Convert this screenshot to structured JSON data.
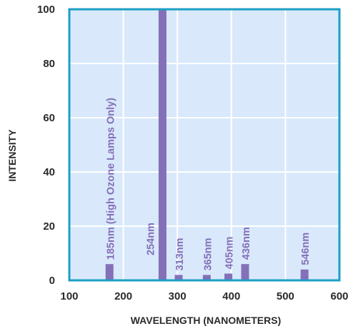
{
  "chart_data": {
    "type": "bar",
    "xlabel": "WAVELENGTH (NANOMETERS)",
    "ylabel": "INTENSITY",
    "xlim": [
      100,
      600
    ],
    "ylim": [
      0,
      100
    ],
    "xticks": [
      100,
      200,
      300,
      400,
      500,
      600
    ],
    "yticks": [
      0,
      20,
      40,
      60,
      80,
      100
    ],
    "grid": true,
    "colors": {
      "plot_background": "#d9e9fb",
      "plot_border": "#1c9fc4",
      "grid": "#ffffff",
      "bar": "#8470b8",
      "label": "#8470b8"
    },
    "bars": [
      {
        "x": 185,
        "value": 6,
        "label": "185nm (High Ozone Lamps Only)"
      },
      {
        "x": 254,
        "value": 100,
        "label": "254nm"
      },
      {
        "x": 313,
        "value": 2,
        "label": "313nm"
      },
      {
        "x": 365,
        "value": 2,
        "label": "365nm"
      },
      {
        "x": 405,
        "value": 2.5,
        "label": "405nm"
      },
      {
        "x": 436,
        "value": 6,
        "label": "436nm"
      },
      {
        "x": 546,
        "value": 4,
        "label": "546nm"
      }
    ]
  }
}
